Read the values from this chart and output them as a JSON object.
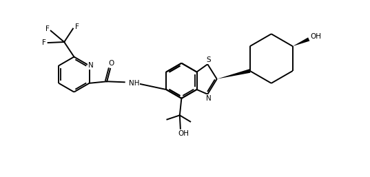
{
  "background_color": "#ffffff",
  "line_color": "#000000",
  "line_width": 1.4,
  "figsize": [
    5.37,
    2.57
  ],
  "dpi": 100,
  "xlim": [
    0,
    10
  ],
  "ylim": [
    0,
    5
  ]
}
